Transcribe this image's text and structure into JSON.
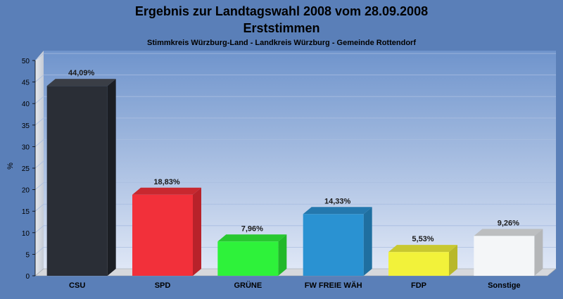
{
  "chart_data": {
    "type": "bar",
    "title": "Ergebnis zur Landtagswahl 2008 vom 28.09.2008",
    "subtitle": "Erststimmen",
    "caption": "Stimmkreis Würzburg-Land - Landkreis Würzburg - Gemeinde Rottendorf",
    "ylabel": "%",
    "xlabel": "",
    "ylim": [
      0,
      50
    ],
    "yticks": [
      0,
      5,
      10,
      15,
      20,
      25,
      30,
      35,
      40,
      45,
      50
    ],
    "grid": true,
    "categories": [
      "CSU",
      "SPD",
      "GRÜNE",
      "FW FREIE WÄH",
      "FDP",
      "Sonstige"
    ],
    "values": [
      44.09,
      18.83,
      7.96,
      14.33,
      5.53,
      9.26
    ],
    "value_labels": [
      "44,09%",
      "18,83%",
      "7,96%",
      "14,33%",
      "5,53%",
      "9,26%"
    ],
    "colors": [
      "#2a2e36",
      "#f2303a",
      "#2ef23a",
      "#2a92d2",
      "#f2f23a",
      "#f4f6f8"
    ],
    "side_colors": [
      "#1b1e24",
      "#b8222a",
      "#22b82a",
      "#1f6fa0",
      "#b8b82a",
      "#b4b6b8"
    ],
    "top_colors": [
      "#3a3e46",
      "#c8282f",
      "#28c830",
      "#2478ae",
      "#c8c830",
      "#bcbec0"
    ]
  }
}
